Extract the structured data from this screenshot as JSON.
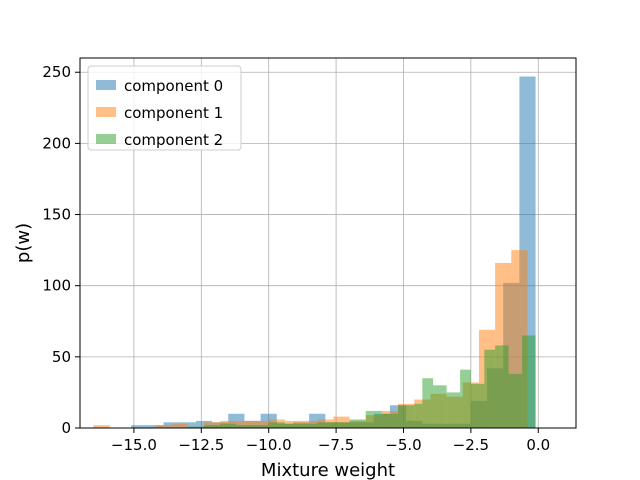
{
  "chart_data": {
    "type": "bar",
    "subtype": "overlaid-histogram",
    "title": "",
    "xlabel": "Mixture weight",
    "ylabel": "p(w)",
    "xlim": [
      -17.0,
      1.4
    ],
    "ylim": [
      0,
      260
    ],
    "xticks": [
      -15.0,
      -12.5,
      -10.0,
      -7.5,
      -5.0,
      -2.5,
      0.0
    ],
    "xtick_labels": [
      "−15.0",
      "−12.5",
      "−10.0",
      "−7.5",
      "−5.0",
      "−2.5",
      "0.0"
    ],
    "yticks": [
      0,
      50,
      100,
      150,
      200,
      250
    ],
    "ytick_labels": [
      "0",
      "50",
      "100",
      "150",
      "200",
      "250"
    ],
    "grid": true,
    "legend_position": "top-left",
    "bar_alpha": 0.5,
    "series": [
      {
        "name": "component 0",
        "color": "#1f77b4",
        "bins": [
          [
            -15.1,
            -14.5,
            2
          ],
          [
            -14.5,
            -13.9,
            2
          ],
          [
            -13.9,
            -13.3,
            4
          ],
          [
            -13.3,
            -12.7,
            4
          ],
          [
            -12.7,
            -12.1,
            5
          ],
          [
            -12.1,
            -11.5,
            4
          ],
          [
            -11.5,
            -10.9,
            10
          ],
          [
            -10.9,
            -10.3,
            5
          ],
          [
            -10.3,
            -9.7,
            10
          ],
          [
            -9.7,
            -9.1,
            3
          ],
          [
            -9.1,
            -8.5,
            4
          ],
          [
            -8.5,
            -7.9,
            10
          ],
          [
            -7.9,
            -7.3,
            4
          ],
          [
            -7.3,
            -6.7,
            4
          ],
          [
            -6.7,
            -6.1,
            4
          ],
          [
            -6.1,
            -5.5,
            10
          ],
          [
            -5.5,
            -4.9,
            16
          ],
          [
            -4.9,
            -4.3,
            5
          ],
          [
            -4.3,
            -3.7,
            3
          ],
          [
            -3.7,
            -3.1,
            3
          ],
          [
            -3.1,
            -2.5,
            3
          ],
          [
            -2.5,
            -1.9,
            19
          ],
          [
            -1.9,
            -1.3,
            42
          ],
          [
            -1.3,
            -0.7,
            102
          ],
          [
            -0.7,
            -0.1,
            247
          ]
        ]
      },
      {
        "name": "component 1",
        "color": "#ff7f0e",
        "bins": [
          [
            -16.5,
            -15.9,
            2
          ],
          [
            -14.2,
            -13.6,
            2
          ],
          [
            -13.6,
            -13.0,
            3
          ],
          [
            -12.4,
            -11.8,
            4
          ],
          [
            -11.8,
            -11.2,
            5
          ],
          [
            -11.2,
            -10.6,
            5
          ],
          [
            -10.6,
            -10.0,
            5
          ],
          [
            -10.0,
            -9.4,
            6
          ],
          [
            -9.4,
            -8.8,
            5
          ],
          [
            -8.8,
            -8.2,
            5
          ],
          [
            -8.2,
            -7.6,
            6
          ],
          [
            -7.6,
            -7.0,
            8
          ],
          [
            -7.0,
            -6.4,
            5
          ],
          [
            -6.4,
            -5.8,
            9
          ],
          [
            -5.8,
            -5.2,
            12
          ],
          [
            -5.2,
            -4.6,
            17
          ],
          [
            -4.6,
            -4.0,
            20
          ],
          [
            -4.0,
            -3.4,
            24
          ],
          [
            -3.4,
            -2.8,
            22
          ],
          [
            -2.8,
            -2.2,
            32
          ],
          [
            -2.2,
            -1.6,
            69
          ],
          [
            -1.6,
            -1.0,
            116
          ],
          [
            -1.0,
            -0.4,
            125
          ]
        ]
      },
      {
        "name": "component 2",
        "color": "#2ca02c",
        "bins": [
          [
            -13.0,
            -12.4,
            1
          ],
          [
            -12.4,
            -11.8,
            2
          ],
          [
            -11.8,
            -11.2,
            3
          ],
          [
            -11.2,
            -10.6,
            2
          ],
          [
            -10.6,
            -10.0,
            2
          ],
          [
            -10.0,
            -9.4,
            4
          ],
          [
            -9.4,
            -8.8,
            3
          ],
          [
            -8.8,
            -8.2,
            3
          ],
          [
            -8.2,
            -7.6,
            4
          ],
          [
            -7.6,
            -7.0,
            4
          ],
          [
            -7.0,
            -6.4,
            6
          ],
          [
            -6.4,
            -5.8,
            12
          ],
          [
            -5.8,
            -5.2,
            10
          ],
          [
            -5.2,
            -4.6,
            16
          ],
          [
            -4.6,
            -4.3,
            17
          ],
          [
            -4.3,
            -3.9,
            35
          ],
          [
            -3.9,
            -3.4,
            30
          ],
          [
            -3.4,
            -2.9,
            25
          ],
          [
            -2.9,
            -2.5,
            41
          ],
          [
            -2.5,
            -2.0,
            31
          ],
          [
            -2.0,
            -1.6,
            55
          ],
          [
            -1.6,
            -1.1,
            58
          ],
          [
            -1.1,
            -0.6,
            38
          ],
          [
            -0.6,
            -0.1,
            65
          ]
        ]
      }
    ]
  }
}
